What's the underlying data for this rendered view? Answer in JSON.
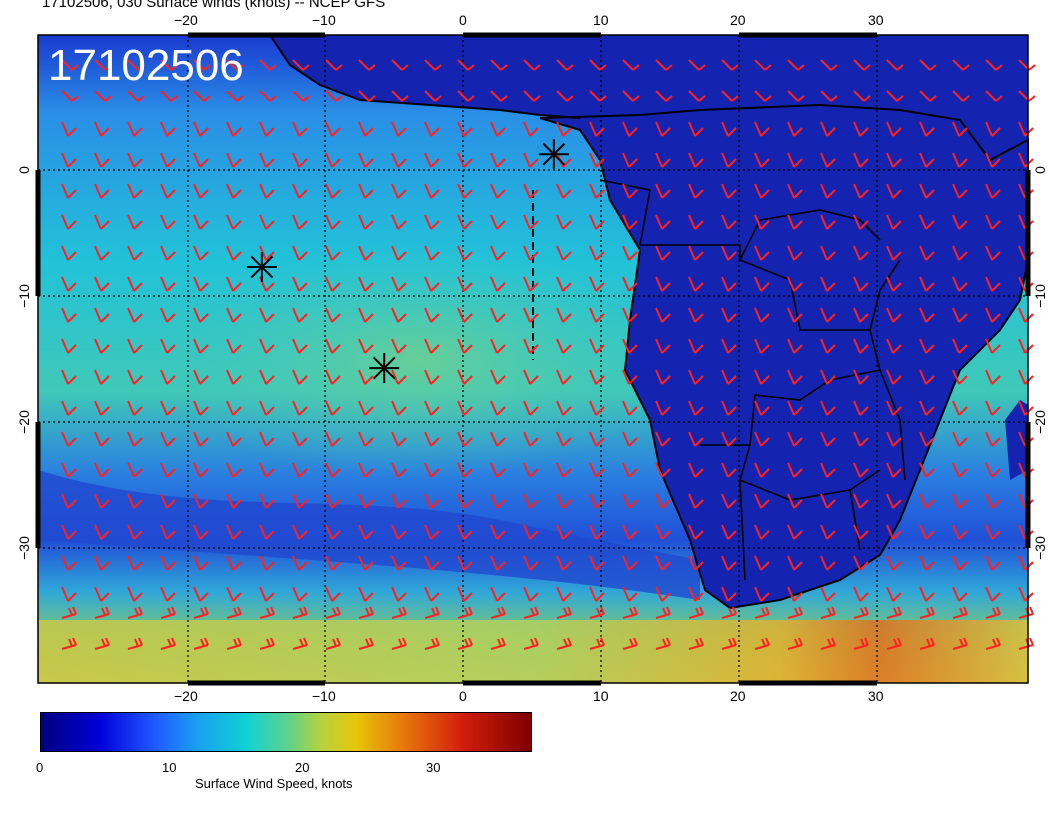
{
  "title": "17102506, 030 Surface winds (knots) -- NCEP GFS",
  "stamp": "17102506",
  "x_tick_labels": [
    "−20",
    "−10",
    "0",
    "10",
    "20",
    "30"
  ],
  "y_tick_labels": [
    "0",
    "−10",
    "−20",
    "−30"
  ],
  "colorbar": {
    "tick_labels": [
      "0",
      "10",
      "20",
      "30"
    ],
    "label": "Surface Wind Speed, knots"
  },
  "colors": {
    "barb": "#ff2020",
    "ocean_low": "#1030c8",
    "ocean_mid": "#20b0d8",
    "land": "#1020a8"
  },
  "markers": [
    {
      "name": "asterisk-marker-east",
      "lon": 6.5,
      "lat": 0.3
    },
    {
      "name": "asterisk-marker-northwest",
      "lon": -14.5,
      "lat": -8.4
    },
    {
      "name": "asterisk-marker-center",
      "lon": -5.7,
      "lat": -16.2
    }
  ],
  "map_extent": {
    "lon_min": -30.6,
    "lon_max": 40.6,
    "lat_min": -40.5,
    "lat_max": 9.5
  }
}
